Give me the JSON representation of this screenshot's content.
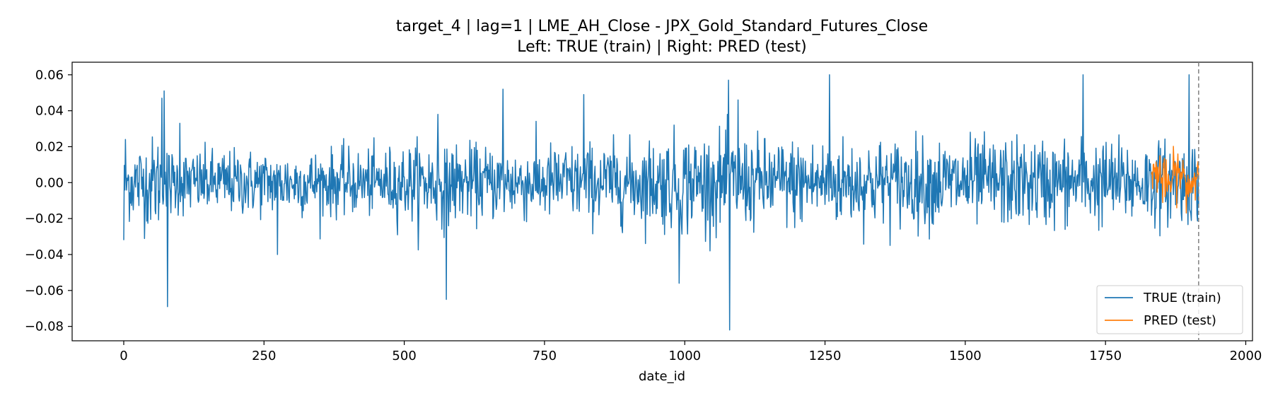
{
  "chart_data": {
    "type": "line",
    "title_line1": "target_4 | lag=1 | LME_AH_Close - JPX_Gold_Standard_Futures_Close",
    "title_line2": "Left: TRUE (train) | Right: PRED (test)",
    "xlabel": "date_id",
    "ylabel": "",
    "xlim": [
      -92,
      2012
    ],
    "ylim": [
      -0.088,
      0.067
    ],
    "x_ticks": [
      0,
      250,
      500,
      750,
      1000,
      1250,
      1500,
      1750,
      2000
    ],
    "x_tick_labels": [
      "0",
      "250",
      "500",
      "750",
      "1000",
      "1250",
      "1500",
      "1750",
      "2000"
    ],
    "y_ticks": [
      0.06,
      0.04,
      0.02,
      0.0,
      -0.02,
      -0.04,
      -0.06,
      -0.08
    ],
    "y_tick_labels": [
      "0.06",
      "0.04",
      "0.02",
      "0.00",
      "−0.02",
      "−0.04",
      "−0.06",
      "−0.08"
    ],
    "grid": false,
    "legend_position": "lower-right",
    "split_marker_x": 1916,
    "series": [
      {
        "name": "TRUE (train)",
        "color": "#1f77b4",
        "x_start": 0,
        "x_end": 1916,
        "points": 1917,
        "noise_scale_knots": [
          [
            0,
            0.01
          ],
          [
            60,
            0.013
          ],
          [
            90,
            0.009
          ],
          [
            450,
            0.009
          ],
          [
            560,
            0.012
          ],
          [
            620,
            0.01
          ],
          [
            900,
            0.011
          ],
          [
            1000,
            0.014
          ],
          [
            1150,
            0.012
          ],
          [
            1400,
            0.012
          ],
          [
            1700,
            0.012
          ],
          [
            1916,
            0.011
          ]
        ],
        "spikes": [
          {
            "x": 0,
            "y": -0.032
          },
          {
            "x": 3,
            "y": 0.024
          },
          {
            "x": 68,
            "y": 0.047
          },
          {
            "x": 72,
            "y": 0.051
          },
          {
            "x": 78,
            "y": -0.069
          },
          {
            "x": 100,
            "y": 0.033
          },
          {
            "x": 274,
            "y": -0.04
          },
          {
            "x": 560,
            "y": 0.038
          },
          {
            "x": 575,
            "y": -0.065
          },
          {
            "x": 676,
            "y": 0.052
          },
          {
            "x": 820,
            "y": 0.049
          },
          {
            "x": 990,
            "y": -0.056
          },
          {
            "x": 1078,
            "y": 0.057
          },
          {
            "x": 1080,
            "y": -0.082
          },
          {
            "x": 1095,
            "y": 0.046
          },
          {
            "x": 1258,
            "y": 0.06
          },
          {
            "x": 1710,
            "y": 0.06
          },
          {
            "x": 1899,
            "y": 0.06
          }
        ]
      },
      {
        "name": "PRED (test)",
        "color": "#ff7f0e",
        "x_start": 1832,
        "x_end": 1916,
        "points": 85,
        "amplitude": 0.011,
        "y_min": -0.017,
        "y_max": 0.026
      }
    ]
  }
}
